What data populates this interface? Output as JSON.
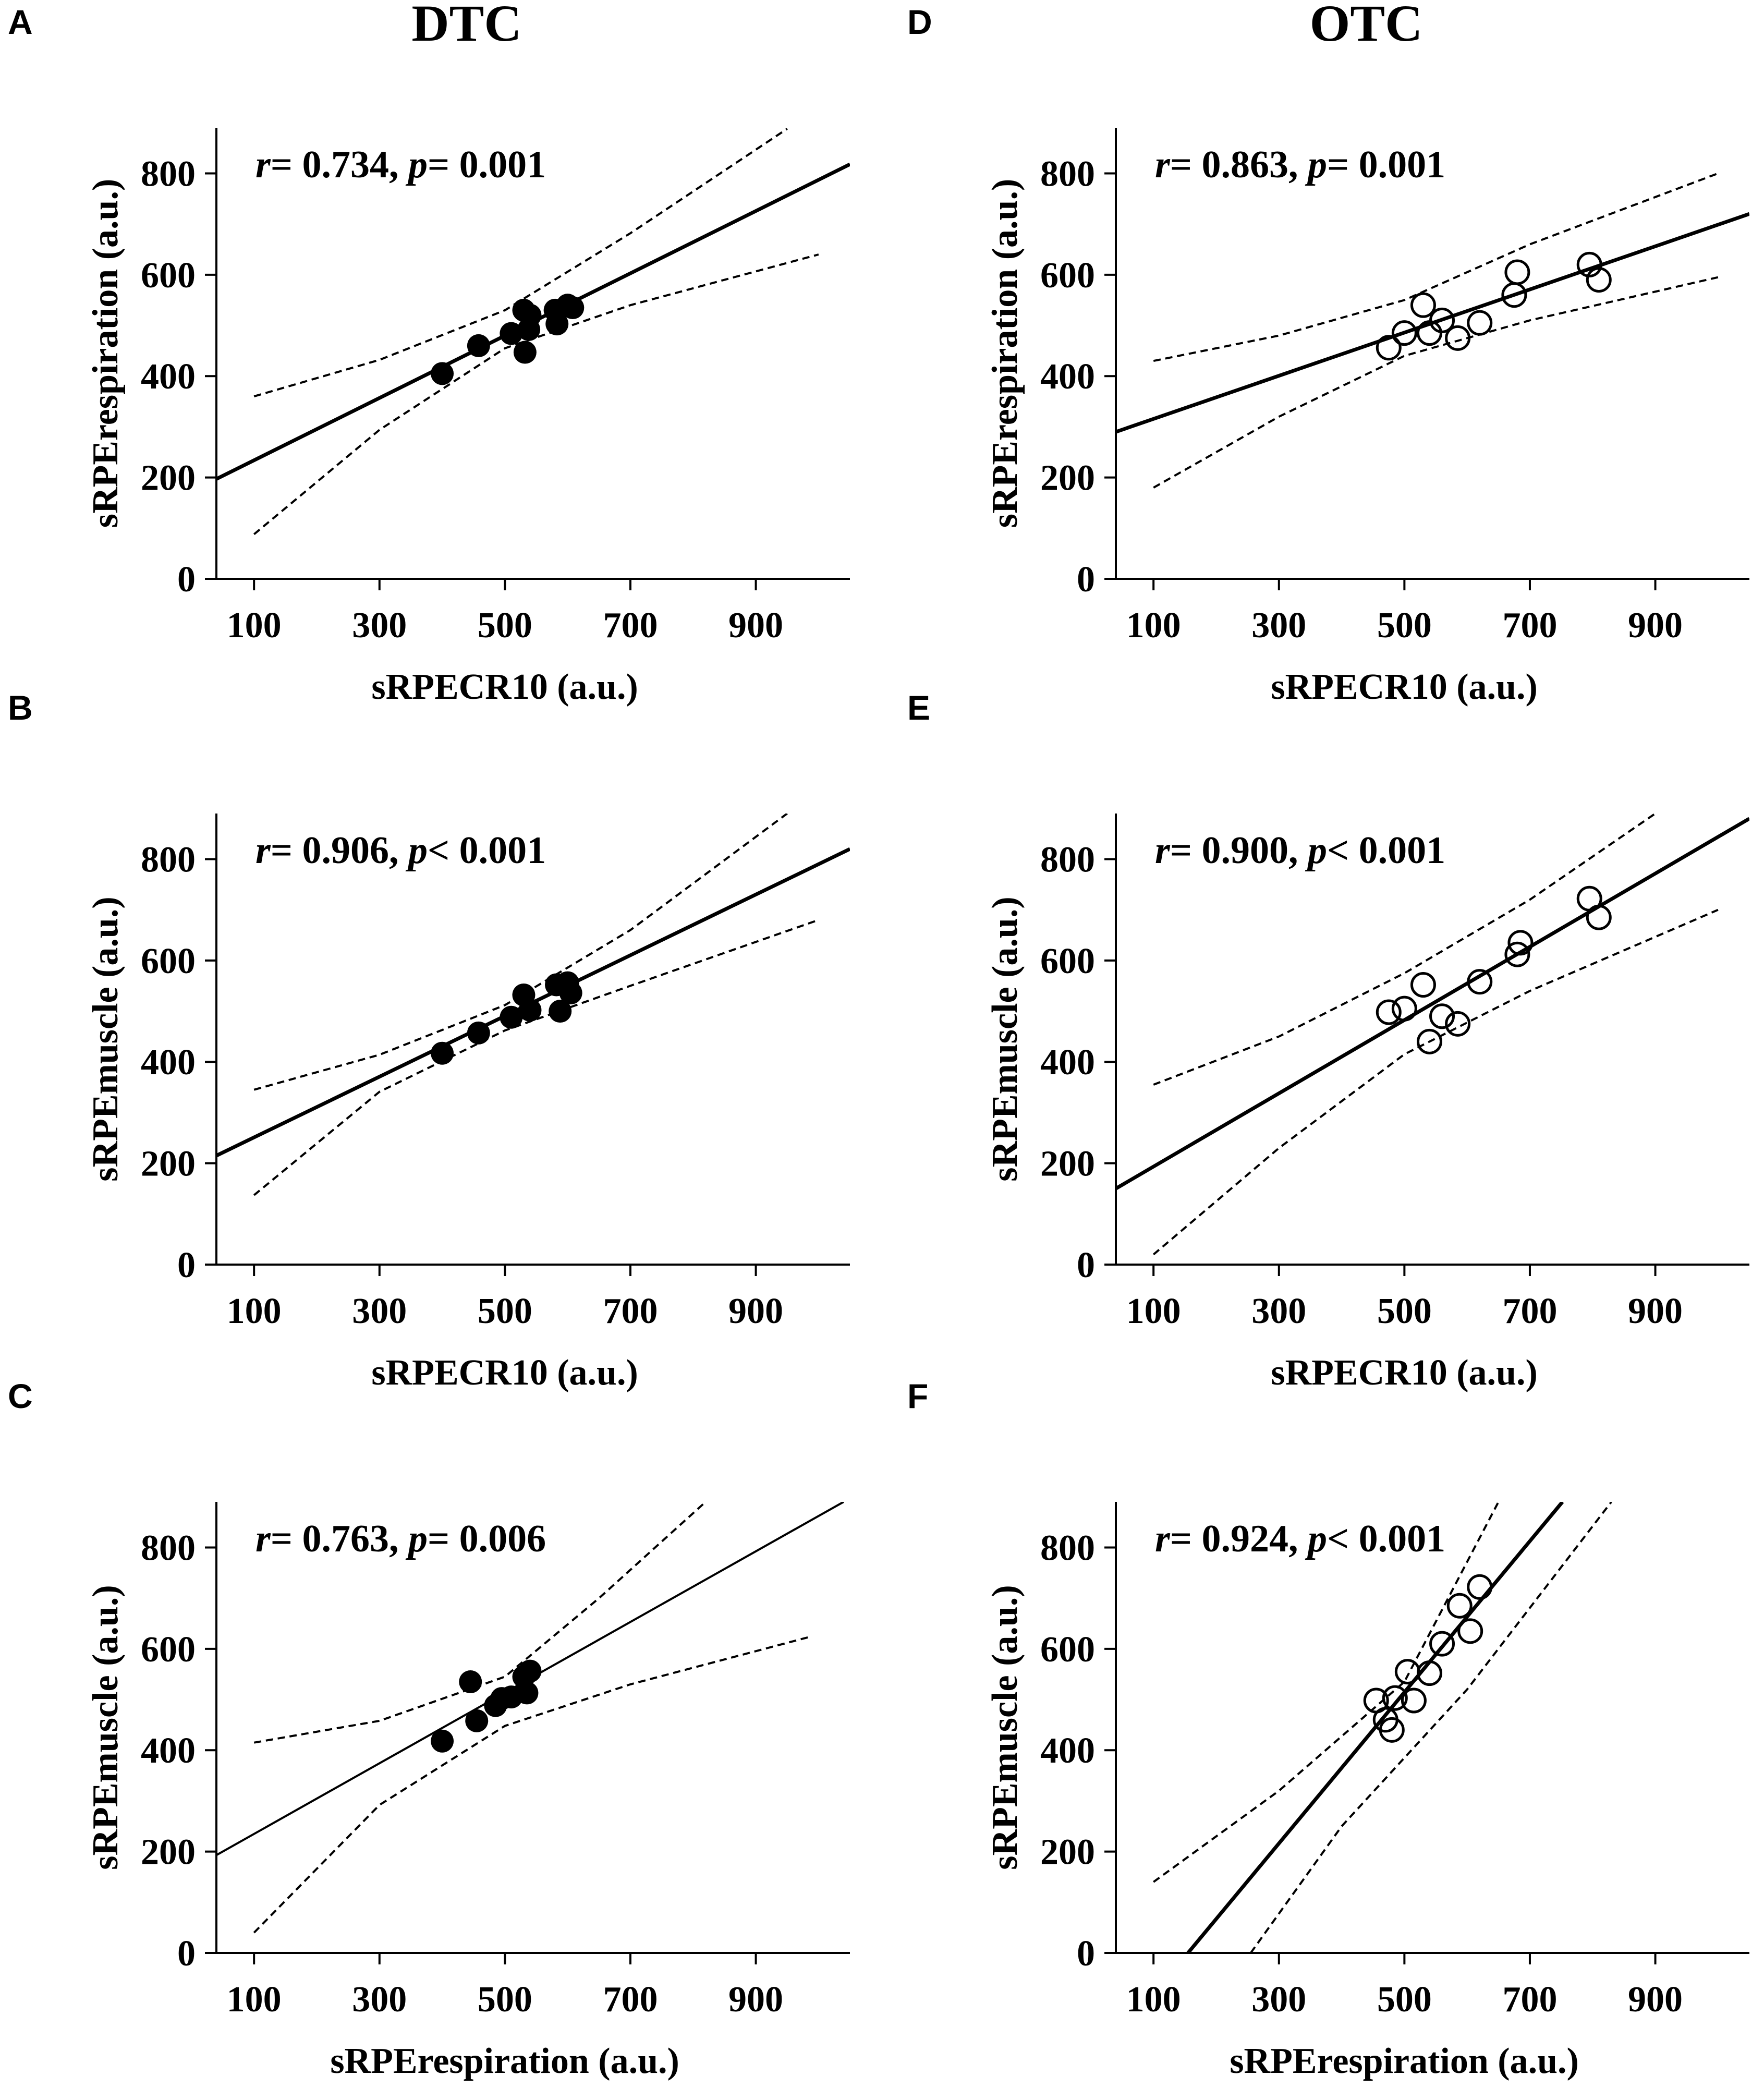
{
  "figure": {
    "column_titles": [
      "DTC",
      "OTC"
    ]
  },
  "chart_data": [
    {
      "panel": "A",
      "group": "DTC",
      "type": "scatter",
      "xlabel": "sRPECR10 (a.u.)",
      "ylabel": "sRPErespiration (a.u.)",
      "xlim": [
        40,
        1050
      ],
      "ylim": [
        0,
        890
      ],
      "xticks": [
        100,
        300,
        500,
        700,
        900
      ],
      "yticks": [
        0,
        200,
        400,
        600,
        800
      ],
      "stat": {
        "r_label": "r",
        "r_text": "= 0.734, ",
        "p_label": "p",
        "p_text": "= 0.001"
      },
      "marker": "filled",
      "fit": {
        "x": [
          40,
          1050
        ],
        "y": [
          197,
          818
        ],
        "width": 7
      },
      "ci_upper": {
        "x": [
          100,
          300,
          500,
          700,
          950
        ],
        "y": [
          360,
          432,
          530,
          682,
          888
        ]
      },
      "ci_lower": {
        "x": [
          100,
          300,
          500,
          700,
          1000
        ],
        "y": [
          88,
          294,
          455,
          540,
          640
        ]
      },
      "points": [
        [
          400,
          405
        ],
        [
          458,
          460
        ],
        [
          510,
          484
        ],
        [
          530,
          530
        ],
        [
          540,
          520
        ],
        [
          532,
          447
        ],
        [
          538,
          492
        ],
        [
          580,
          530
        ],
        [
          583,
          503
        ],
        [
          600,
          540
        ],
        [
          608,
          535
        ]
      ]
    },
    {
      "panel": "B",
      "group": "DTC",
      "type": "scatter",
      "xlabel": "sRPECR10 (a.u.)",
      "ylabel": "sRPEmuscle (a.u.)",
      "xlim": [
        40,
        1050
      ],
      "ylim": [
        0,
        890
      ],
      "xticks": [
        100,
        300,
        500,
        700,
        900
      ],
      "yticks": [
        0,
        200,
        400,
        600,
        800
      ],
      "stat": {
        "r_label": "r",
        "r_text": "= 0.906, ",
        "p_label": "p",
        "p_text": "< 0.001"
      },
      "marker": "filled",
      "fit": {
        "x": [
          40,
          1050
        ],
        "y": [
          215,
          820
        ],
        "width": 7
      },
      "ci_upper": {
        "x": [
          100,
          300,
          500,
          700,
          950
        ],
        "y": [
          345,
          414,
          512,
          660,
          890
        ]
      },
      "ci_lower": {
        "x": [
          100,
          300,
          500,
          700,
          1000
        ],
        "y": [
          137,
          341,
          462,
          550,
          680
        ]
      },
      "points": [
        [
          400,
          417
        ],
        [
          458,
          457
        ],
        [
          510,
          488
        ],
        [
          530,
          532
        ],
        [
          540,
          502
        ],
        [
          582,
          552
        ],
        [
          588,
          500
        ],
        [
          600,
          556
        ],
        [
          605,
          536
        ]
      ]
    },
    {
      "panel": "C",
      "group": "DTC",
      "type": "scatter",
      "xlabel": "sRPErespiration (a.u.)",
      "ylabel": "sRPEmuscle (a.u.)",
      "xlim": [
        40,
        1050
      ],
      "ylim": [
        0,
        890
      ],
      "xticks": [
        100,
        300,
        500,
        700,
        900
      ],
      "yticks": [
        0,
        200,
        400,
        600,
        800
      ],
      "stat": {
        "r_label": "r",
        "r_text": "= 0.763, ",
        "p_label": "p",
        "p_text": "= 0.006"
      },
      "marker": "filled",
      "fit": {
        "x": [
          40,
          1040
        ],
        "y": [
          193,
          890
        ],
        "width": 4
      },
      "ci_upper": {
        "x": [
          100,
          300,
          500,
          650,
          820
        ],
        "y": [
          415,
          458,
          545,
          700,
          890
        ]
      },
      "ci_lower": {
        "x": [
          100,
          300,
          500,
          700,
          990
        ],
        "y": [
          40,
          292,
          448,
          530,
          625
        ]
      },
      "points": [
        [
          400,
          418
        ],
        [
          445,
          535
        ],
        [
          455,
          458
        ],
        [
          485,
          488
        ],
        [
          495,
          502
        ],
        [
          510,
          505
        ],
        [
          530,
          545
        ],
        [
          535,
          513
        ],
        [
          540,
          556
        ]
      ]
    },
    {
      "panel": "D",
      "group": "OTC",
      "type": "scatter",
      "xlabel": "sRPECR10 (a.u.)",
      "ylabel": "sRPErespiration (a.u.)",
      "xlim": [
        40,
        1050
      ],
      "ylim": [
        0,
        890
      ],
      "xticks": [
        100,
        300,
        500,
        700,
        900
      ],
      "yticks": [
        0,
        200,
        400,
        600,
        800
      ],
      "stat": {
        "r_label": "r",
        "r_text": "= 0.863, ",
        "p_label": "p",
        "p_text": "= 0.001"
      },
      "marker": "open",
      "fit": {
        "x": [
          40,
          1050
        ],
        "y": [
          290,
          720
        ],
        "width": 7
      },
      "ci_upper": {
        "x": [
          100,
          300,
          500,
          700,
          1000
        ],
        "y": [
          430,
          480,
          550,
          660,
          800
        ]
      },
      "ci_lower": {
        "x": [
          100,
          300,
          500,
          700,
          1000
        ],
        "y": [
          180,
          320,
          440,
          510,
          595
        ]
      },
      "points": [
        [
          475,
          456
        ],
        [
          500,
          485
        ],
        [
          530,
          540
        ],
        [
          540,
          485
        ],
        [
          560,
          510
        ],
        [
          585,
          475
        ],
        [
          620,
          505
        ],
        [
          675,
          560
        ],
        [
          680,
          605
        ],
        [
          795,
          620
        ],
        [
          810,
          590
        ]
      ]
    },
    {
      "panel": "E",
      "group": "OTC",
      "type": "scatter",
      "xlabel": "sRPECR10 (a.u.)",
      "ylabel": "sRPEmuscle (a.u.)",
      "xlim": [
        40,
        1050
      ],
      "ylim": [
        0,
        890
      ],
      "xticks": [
        100,
        300,
        500,
        700,
        900
      ],
      "yticks": [
        0,
        200,
        400,
        600,
        800
      ],
      "stat": {
        "r_label": "r",
        "r_text": "= 0.900, ",
        "p_label": "p",
        "p_text": "< 0.001"
      },
      "marker": "open",
      "fit": {
        "x": [
          40,
          1050
        ],
        "y": [
          150,
          880
        ],
        "width": 7
      },
      "ci_upper": {
        "x": [
          100,
          300,
          500,
          700,
          900
        ],
        "y": [
          355,
          450,
          575,
          720,
          890
        ]
      },
      "ci_lower": {
        "x": [
          100,
          300,
          500,
          700,
          1000
        ],
        "y": [
          20,
          230,
          415,
          540,
          700
        ]
      },
      "points": [
        [
          475,
          498
        ],
        [
          500,
          505
        ],
        [
          530,
          552
        ],
        [
          540,
          440
        ],
        [
          560,
          490
        ],
        [
          585,
          475
        ],
        [
          620,
          558
        ],
        [
          680,
          612
        ],
        [
          685,
          635
        ],
        [
          795,
          722
        ],
        [
          810,
          685
        ]
      ]
    },
    {
      "panel": "F",
      "group": "OTC",
      "type": "scatter",
      "xlabel": "sRPErespiration (a.u.)",
      "ylabel": "sRPEmuscle (a.u.)",
      "xlim": [
        40,
        1050
      ],
      "ylim": [
        0,
        890
      ],
      "xticks": [
        100,
        300,
        500,
        700,
        900
      ],
      "yticks": [
        0,
        200,
        400,
        600,
        800
      ],
      "stat": {
        "r_label": "r",
        "r_text": "= 0.924, ",
        "p_label": "p",
        "p_text": "< 0.001"
      },
      "marker": "open",
      "fit": {
        "x": [
          155,
          752
        ],
        "y": [
          0,
          890
        ],
        "width": 7
      },
      "ci_upper": {
        "x": [
          100,
          300,
          500,
          650
        ],
        "y": [
          140,
          320,
          535,
          890
        ]
      },
      "ci_lower": {
        "x": [
          255,
          400,
          600,
          830
        ],
        "y": [
          0,
          250,
          520,
          890
        ]
      },
      "points": [
        [
          455,
          498
        ],
        [
          470,
          460
        ],
        [
          480,
          440
        ],
        [
          485,
          503
        ],
        [
          505,
          555
        ],
        [
          515,
          498
        ],
        [
          540,
          552
        ],
        [
          560,
          610
        ],
        [
          588,
          685
        ],
        [
          605,
          635
        ],
        [
          620,
          722
        ]
      ]
    }
  ]
}
